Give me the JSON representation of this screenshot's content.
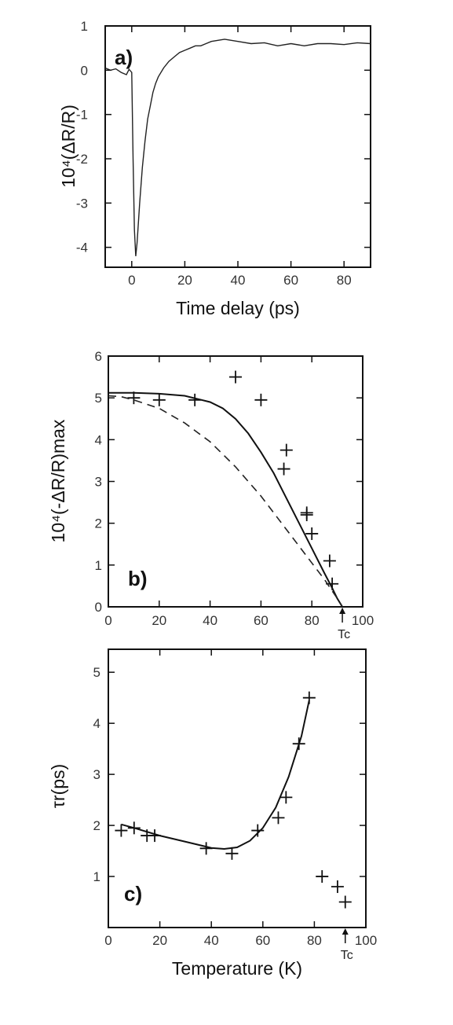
{
  "chart_data": [
    {
      "type": "line",
      "panel_label": "a)",
      "xlabel": "Time delay (ps)",
      "ylabel": "10⁴(ΔR/R)",
      "xlim": [
        -10,
        90
      ],
      "ylim": [
        -4.45,
        1
      ],
      "x_ticks": [
        0,
        20,
        40,
        60,
        80
      ],
      "x_tick_labels": [
        "0",
        "20",
        "40",
        "60",
        "80"
      ],
      "y_ticks": [
        1,
        0,
        -1,
        -2,
        -3,
        -4
      ],
      "y_tick_labels": [
        "1",
        "0",
        "-1",
        "-2",
        "-3",
        "-4"
      ],
      "grid": false,
      "series": [
        {
          "x": [
            -10,
            -8,
            -6,
            -4,
            -2,
            -1,
            0,
            0.5,
            1,
            1.5,
            2,
            3,
            4,
            5,
            6,
            7,
            8,
            9,
            10,
            12,
            14,
            16,
            18,
            20,
            22,
            24,
            26,
            28,
            30,
            35,
            40,
            45,
            50,
            55,
            60,
            65,
            70,
            75,
            80,
            85,
            90
          ],
          "y": [
            0.05,
            0.0,
            0.03,
            -0.05,
            -0.1,
            0.02,
            -0.05,
            -2.0,
            -3.6,
            -4.2,
            -3.9,
            -3.0,
            -2.2,
            -1.6,
            -1.1,
            -0.8,
            -0.5,
            -0.3,
            -0.15,
            0.05,
            0.2,
            0.3,
            0.4,
            0.45,
            0.5,
            0.55,
            0.55,
            0.6,
            0.65,
            0.7,
            0.65,
            0.6,
            0.62,
            0.55,
            0.6,
            0.55,
            0.6,
            0.6,
            0.58,
            0.62,
            0.6
          ]
        }
      ]
    },
    {
      "type": "scatter",
      "panel_label": "b)",
      "xlabel": "",
      "ylabel": "10⁴(-ΔR/R)max",
      "xlim": [
        0,
        100
      ],
      "ylim": [
        0,
        6
      ],
      "x_ticks": [
        0,
        20,
        40,
        60,
        80,
        100
      ],
      "x_tick_labels": [
        "0",
        "20",
        "40",
        "60",
        "80",
        "100"
      ],
      "y_ticks": [
        0,
        1,
        2,
        3,
        4,
        5,
        6
      ],
      "y_tick_labels": [
        "0",
        "1",
        "2",
        "3",
        "4",
        "5",
        "6"
      ],
      "tc_label": "Tc",
      "tc_x": 92,
      "grid": false,
      "series": [
        {
          "style": "points",
          "x": [
            10,
            20,
            34,
            50,
            60,
            69,
            70,
            78,
            78,
            80,
            87,
            88
          ],
          "y": [
            5.0,
            4.95,
            4.95,
            5.5,
            4.95,
            3.3,
            3.75,
            2.2,
            2.25,
            1.75,
            1.1,
            0.55
          ]
        },
        {
          "style": "solid",
          "x": [
            0,
            10,
            20,
            30,
            40,
            45,
            50,
            55,
            60,
            65,
            70,
            75,
            80,
            85,
            88,
            90,
            92
          ],
          "y": [
            5.12,
            5.12,
            5.1,
            5.05,
            4.9,
            4.75,
            4.5,
            4.15,
            3.7,
            3.2,
            2.6,
            2.0,
            1.4,
            0.8,
            0.45,
            0.2,
            0.0
          ]
        },
        {
          "style": "dashed",
          "x": [
            0,
            5,
            10,
            20,
            30,
            40,
            50,
            60,
            70,
            80,
            85,
            90,
            92
          ],
          "y": [
            5.05,
            5.03,
            4.95,
            4.75,
            4.4,
            3.95,
            3.35,
            2.65,
            1.85,
            1.05,
            0.65,
            0.2,
            0.0
          ]
        }
      ]
    },
    {
      "type": "scatter",
      "panel_label": "c)",
      "xlabel": "Temperature (K)",
      "ylabel": "τr(ps)",
      "xlim": [
        0,
        100
      ],
      "ylim": [
        0,
        5.45
      ],
      "x_ticks": [
        0,
        20,
        40,
        60,
        80,
        100
      ],
      "x_tick_labels": [
        "0",
        "20",
        "40",
        "60",
        "80",
        "100"
      ],
      "y_ticks": [
        1,
        2,
        3,
        4,
        5
      ],
      "y_tick_labels": [
        "1",
        "2",
        "3",
        "4",
        "5"
      ],
      "tc_label": "Tc",
      "tc_x": 92,
      "grid": false,
      "series": [
        {
          "style": "points",
          "x": [
            5,
            10,
            15,
            18,
            38,
            48,
            58,
            66,
            69,
            74,
            78,
            83,
            89,
            92
          ],
          "y": [
            1.9,
            1.95,
            1.8,
            1.8,
            1.55,
            1.45,
            1.9,
            2.15,
            2.55,
            3.6,
            4.5,
            1.0,
            0.8,
            0.5
          ]
        },
        {
          "style": "solid",
          "x": [
            5,
            10,
            20,
            30,
            40,
            45,
            50,
            55,
            60,
            65,
            70,
            75,
            78
          ],
          "y": [
            2.02,
            1.95,
            1.8,
            1.68,
            1.56,
            1.54,
            1.57,
            1.7,
            1.95,
            2.35,
            2.95,
            3.75,
            4.45
          ]
        }
      ]
    }
  ]
}
